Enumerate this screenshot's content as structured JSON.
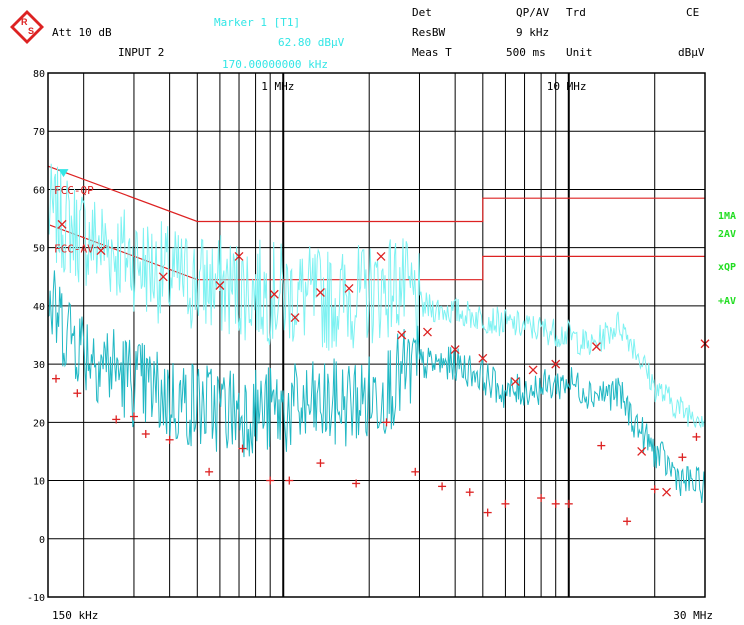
{
  "header": {
    "att": "Att 10 dB",
    "input": "INPUT 2",
    "marker_title": "Marker 1 [T1]",
    "marker_level": "62.80 dBµV",
    "marker_freq": "170.00000000 kHz",
    "det_label": "Det",
    "det_value": "QP/AV",
    "trd_label": "Trd",
    "trd_value": "CE",
    "resbw_label": "ResBW",
    "resbw_value": "9 kHz",
    "meast_label": "Meas T",
    "meast_value": "500 ms",
    "unit_label": "Unit",
    "unit_value": "dBµV"
  },
  "side_labels": [
    "1MA",
    "2AV",
    "xQP",
    "+AV"
  ],
  "colors": {
    "limit": "#dd2222",
    "trace_qp": "#7ef2f2",
    "trace_av": "#22b8c4",
    "marker_x": "#dd2222",
    "marker_plus": "#dd2222",
    "side_label": "#22dd22",
    "marker_text": "#33e6e6",
    "logo": "#dd2222"
  },
  "chart_data": {
    "type": "line",
    "x_scale": "log",
    "xlim_hz": [
      150000,
      30000000
    ],
    "ylim": [
      -10,
      80
    ],
    "ylabel": "",
    "xlabel": "",
    "y_ticks": [
      80,
      70,
      60,
      50,
      40,
      30,
      20,
      10,
      0,
      -10
    ],
    "x_tick_labels": [
      {
        "hz": 150000,
        "label": "150 kHz"
      },
      {
        "hz": 1000000,
        "label": "1 MHz"
      },
      {
        "hz": 10000000,
        "label": "10 MHz"
      },
      {
        "hz": 30000000,
        "label": "30 MHz"
      }
    ],
    "limit_lines": [
      {
        "name": "FCC-QP",
        "points": [
          [
            150000,
            64
          ],
          [
            500000,
            54.5
          ],
          [
            5000000,
            54.5
          ],
          [
            5000000,
            58.5
          ],
          [
            30000000,
            58.5
          ]
        ]
      },
      {
        "name": "FCC-AV",
        "points": [
          [
            150000,
            54
          ],
          [
            500000,
            44.5
          ],
          [
            5000000,
            44.5
          ],
          [
            5000000,
            48.5
          ],
          [
            30000000,
            48.5
          ]
        ]
      }
    ],
    "series": [
      {
        "name": "1MA",
        "anchors": [
          [
            150000,
            56
          ],
          [
            200000,
            52
          ],
          [
            300000,
            48
          ],
          [
            400000,
            45
          ],
          [
            500000,
            44
          ],
          [
            700000,
            43
          ],
          [
            1000000,
            42
          ],
          [
            1500000,
            41
          ],
          [
            2000000,
            42
          ],
          [
            2500000,
            44
          ],
          [
            3000000,
            40
          ],
          [
            4000000,
            39
          ],
          [
            5000000,
            38
          ],
          [
            6000000,
            37
          ],
          [
            8000000,
            36
          ],
          [
            10000000,
            35
          ],
          [
            12000000,
            33
          ],
          [
            15000000,
            37
          ],
          [
            17000000,
            33
          ],
          [
            20000000,
            26
          ],
          [
            25000000,
            22
          ],
          [
            30000000,
            21
          ]
        ]
      },
      {
        "name": "2AV",
        "anchors": [
          [
            150000,
            40
          ],
          [
            200000,
            33
          ],
          [
            300000,
            27
          ],
          [
            400000,
            24
          ],
          [
            500000,
            23
          ],
          [
            700000,
            22
          ],
          [
            1000000,
            22
          ],
          [
            1500000,
            23
          ],
          [
            2000000,
            24
          ],
          [
            3000000,
            30
          ],
          [
            4000000,
            30
          ],
          [
            5000000,
            28
          ],
          [
            6000000,
            25
          ],
          [
            8000000,
            26
          ],
          [
            10000000,
            27
          ],
          [
            12000000,
            25
          ],
          [
            15000000,
            25
          ],
          [
            17000000,
            20
          ],
          [
            20000000,
            15
          ],
          [
            25000000,
            10
          ],
          [
            30000000,
            9
          ]
        ]
      }
    ],
    "qp_points": [
      [
        168000,
        54
      ],
      [
        230000,
        49.5
      ],
      [
        380000,
        45
      ],
      [
        600000,
        43.5
      ],
      [
        700000,
        48.5
      ],
      [
        930000,
        42
      ],
      [
        1100000,
        38
      ],
      [
        1350000,
        42.3
      ],
      [
        1700000,
        43
      ],
      [
        2200000,
        48.5
      ],
      [
        2600000,
        35
      ],
      [
        3200000,
        35.5
      ],
      [
        4000000,
        32.5
      ],
      [
        5000000,
        31
      ],
      [
        6500000,
        27
      ],
      [
        7500000,
        29
      ],
      [
        9000000,
        30
      ],
      [
        12500000,
        33
      ],
      [
        18000000,
        15
      ],
      [
        22000000,
        8
      ],
      [
        30000000,
        33.5
      ]
    ],
    "av_points": [
      [
        160000,
        27.5
      ],
      [
        190000,
        25
      ],
      [
        260000,
        20.5
      ],
      [
        300000,
        21
      ],
      [
        330000,
        18
      ],
      [
        400000,
        17
      ],
      [
        550000,
        11.5
      ],
      [
        720000,
        15.5
      ],
      [
        900000,
        10
      ],
      [
        1050000,
        10
      ],
      [
        1350000,
        13
      ],
      [
        1800000,
        9.5
      ],
      [
        2300000,
        20
      ],
      [
        2900000,
        11.5
      ],
      [
        3600000,
        9
      ],
      [
        4500000,
        8
      ],
      [
        5200000,
        4.5
      ],
      [
        6000000,
        6
      ],
      [
        8000000,
        7
      ],
      [
        9000000,
        6
      ],
      [
        10000000,
        6
      ],
      [
        13000000,
        16
      ],
      [
        16000000,
        3
      ],
      [
        20000000,
        8.5
      ],
      [
        25000000,
        14
      ],
      [
        28000000,
        17.5
      ]
    ],
    "marker": {
      "hz": 170000,
      "dbuv": 62.8
    }
  }
}
